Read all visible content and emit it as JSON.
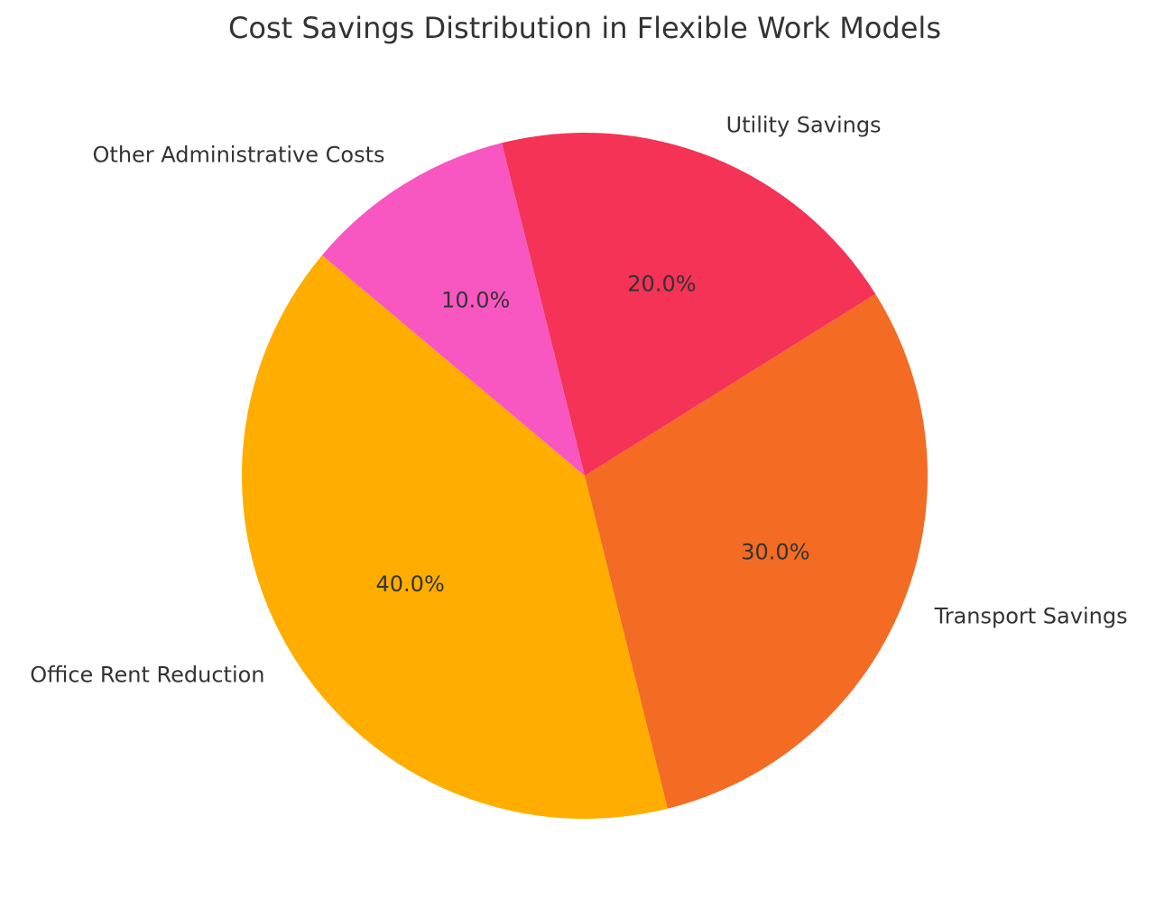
{
  "chart_data": {
    "type": "pie",
    "title": "Cost Savings Distribution in Flexible Work Models",
    "slices": [
      {
        "label": "Office Rent Reduction",
        "value": 40.0,
        "pct_label": "40.0%",
        "color": "#FFAE00"
      },
      {
        "label": "Transport Savings",
        "value": 30.0,
        "pct_label": "30.0%",
        "color": "#F46B23"
      },
      {
        "label": "Utility Savings",
        "value": 20.0,
        "pct_label": "20.0%",
        "color": "#F43357"
      },
      {
        "label": "Other Administrative Costs",
        "value": 10.0,
        "pct_label": "10.0%",
        "color": "#F857C1"
      }
    ],
    "start_angle_deg": 140,
    "direction": "counterclockwise",
    "legend": "none"
  }
}
